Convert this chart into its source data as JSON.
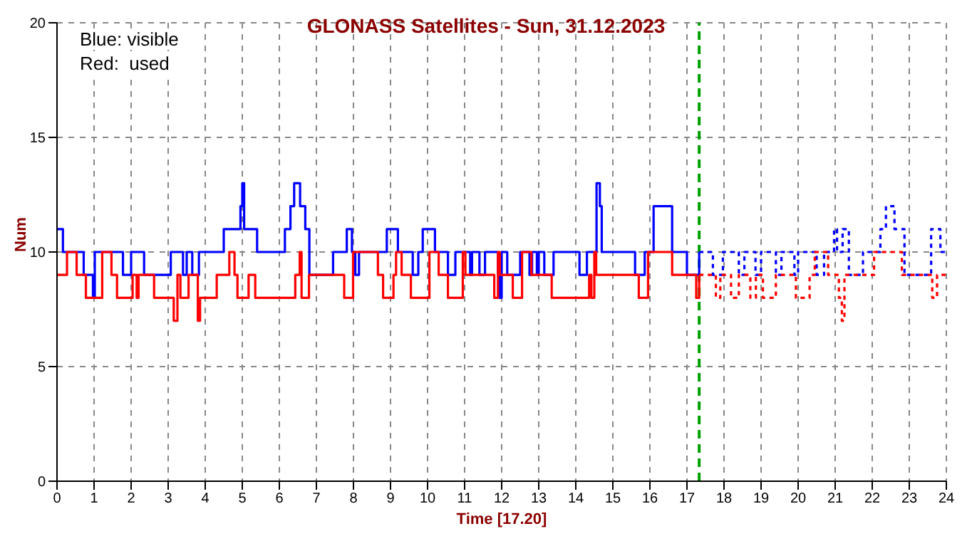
{
  "chart_data": {
    "type": "step",
    "title": "GLONASS Satellites - Sun, 31.12.2023",
    "xlabel": "Time  [17.20]",
    "ylabel": "Num",
    "annotations": [
      "Blue: visible",
      "Red:  used"
    ],
    "xlim": [
      0,
      24
    ],
    "xticks": [
      0,
      1,
      2,
      3,
      4,
      5,
      6,
      7,
      8,
      9,
      10,
      11,
      12,
      13,
      14,
      15,
      16,
      17,
      18,
      19,
      20,
      21,
      22,
      23,
      24
    ],
    "ylim": [
      0,
      20
    ],
    "yticks": [
      0,
      5,
      10,
      15,
      20
    ],
    "grid": true,
    "marker": "none",
    "ref_lines": [
      {
        "axis": "x",
        "value": 17.33,
        "label": null,
        "color": "#00a000",
        "line_style": "dashed"
      }
    ],
    "series": [
      {
        "color": "#0000ff",
        "line_style": "solid",
        "x": [
          0,
          0.16,
          0.72,
          0.97,
          1.02,
          1.78,
          2.0,
          2.35,
          3.07,
          3.4,
          3.5,
          3.65,
          3.83,
          4.5,
          4.95,
          5.0,
          5.05,
          5.4,
          6.15,
          6.3,
          6.4,
          6.56,
          6.7,
          6.81,
          7.45,
          7.82,
          7.96,
          8.05,
          8.15,
          8.9,
          9.2,
          9.6,
          9.75,
          9.87,
          10.2,
          10.55,
          10.75,
          11.15,
          11.2,
          11.4,
          11.55,
          11.9,
          11.94,
          12.0,
          12.15,
          12.5,
          12.75,
          12.82,
          12.95,
          13.0,
          13.15,
          13.4,
          14.1,
          14.3,
          14.56,
          14.65,
          14.7,
          15.6,
          15.86,
          16.1,
          16.6,
          17.0,
          17.33
        ],
        "values": [
          11,
          10,
          9,
          8,
          10,
          9,
          10,
          9,
          10,
          9,
          10,
          9,
          10,
          11,
          12,
          13,
          11,
          10,
          11,
          12,
          13,
          12,
          11,
          9,
          10,
          11,
          10,
          9,
          10,
          11,
          10,
          9,
          10,
          11,
          10,
          9,
          10,
          9,
          10,
          9,
          10,
          9,
          8,
          10,
          9,
          10,
          9,
          10,
          9,
          10,
          9,
          10,
          9,
          10,
          13,
          12,
          10,
          9,
          10,
          12,
          10,
          9,
          10
        ]
      },
      {
        "color": "#ff0000",
        "line_style": "solid",
        "x": [
          0,
          0.27,
          0.53,
          0.78,
          1.22,
          1.47,
          1.62,
          2.04,
          2.15,
          2.2,
          2.62,
          3.15,
          3.25,
          3.33,
          3.55,
          3.8,
          3.86,
          4.31,
          4.65,
          4.79,
          4.87,
          5.17,
          5.35,
          6.35,
          6.43,
          6.55,
          6.6,
          6.65,
          6.8,
          7.75,
          7.99,
          8.66,
          8.8,
          9.08,
          9.15,
          9.3,
          9.55,
          10.05,
          10.3,
          10.55,
          10.95,
          11.02,
          11.8,
          11.9,
          11.95,
          12.3,
          12.55,
          12.8,
          13.35,
          14.36,
          14.42,
          14.5,
          14.55,
          15.7,
          15.95,
          16.1,
          16.6,
          17.25,
          17.33
        ],
        "values": [
          9,
          10,
          9,
          8,
          10,
          9,
          8,
          9,
          8,
          9,
          8,
          7,
          9,
          8,
          9,
          7,
          8,
          9,
          10,
          9,
          8,
          9,
          8,
          8,
          9,
          10,
          8,
          8,
          9,
          8,
          10,
          9,
          8,
          9,
          10,
          9,
          8,
          10,
          9,
          8,
          10,
          9,
          8,
          10,
          9,
          8,
          10,
          9,
          8,
          9,
          8,
          10,
          9,
          8,
          10,
          10,
          9,
          8,
          9
        ]
      },
      {
        "color": "#0000ff",
        "line_style": "dotted",
        "x": [
          17.33,
          17.7,
          17.97,
          18.4,
          18.55,
          18.85,
          19.0,
          19.4,
          19.55,
          19.9,
          20.0,
          20.5,
          20.7,
          20.97,
          21.05,
          21.2,
          21.37,
          21.75,
          22.22,
          22.37,
          22.6,
          22.87,
          23.59,
          23.84,
          24
        ],
        "values": [
          10,
          9,
          10,
          9,
          10,
          9,
          10,
          9,
          10,
          9,
          10,
          9,
          10,
          11,
          10,
          11,
          9,
          10,
          11,
          12,
          11,
          9,
          11,
          10,
          10
        ]
      },
      {
        "color": "#ff0000",
        "line_style": "dotted",
        "x": [
          17.33,
          17.78,
          17.9,
          18.19,
          18.4,
          18.71,
          18.86,
          19.05,
          19.4,
          19.94,
          20.31,
          20.45,
          20.81,
          21.1,
          21.18,
          21.25,
          21.3,
          22.05,
          22.8,
          23.62,
          23.75,
          24
        ],
        "values": [
          9,
          8,
          9,
          8,
          9,
          8,
          9,
          8,
          9,
          8,
          9,
          10,
          9,
          8,
          7,
          9,
          9,
          10,
          9,
          8,
          9,
          9
        ]
      }
    ]
  }
}
